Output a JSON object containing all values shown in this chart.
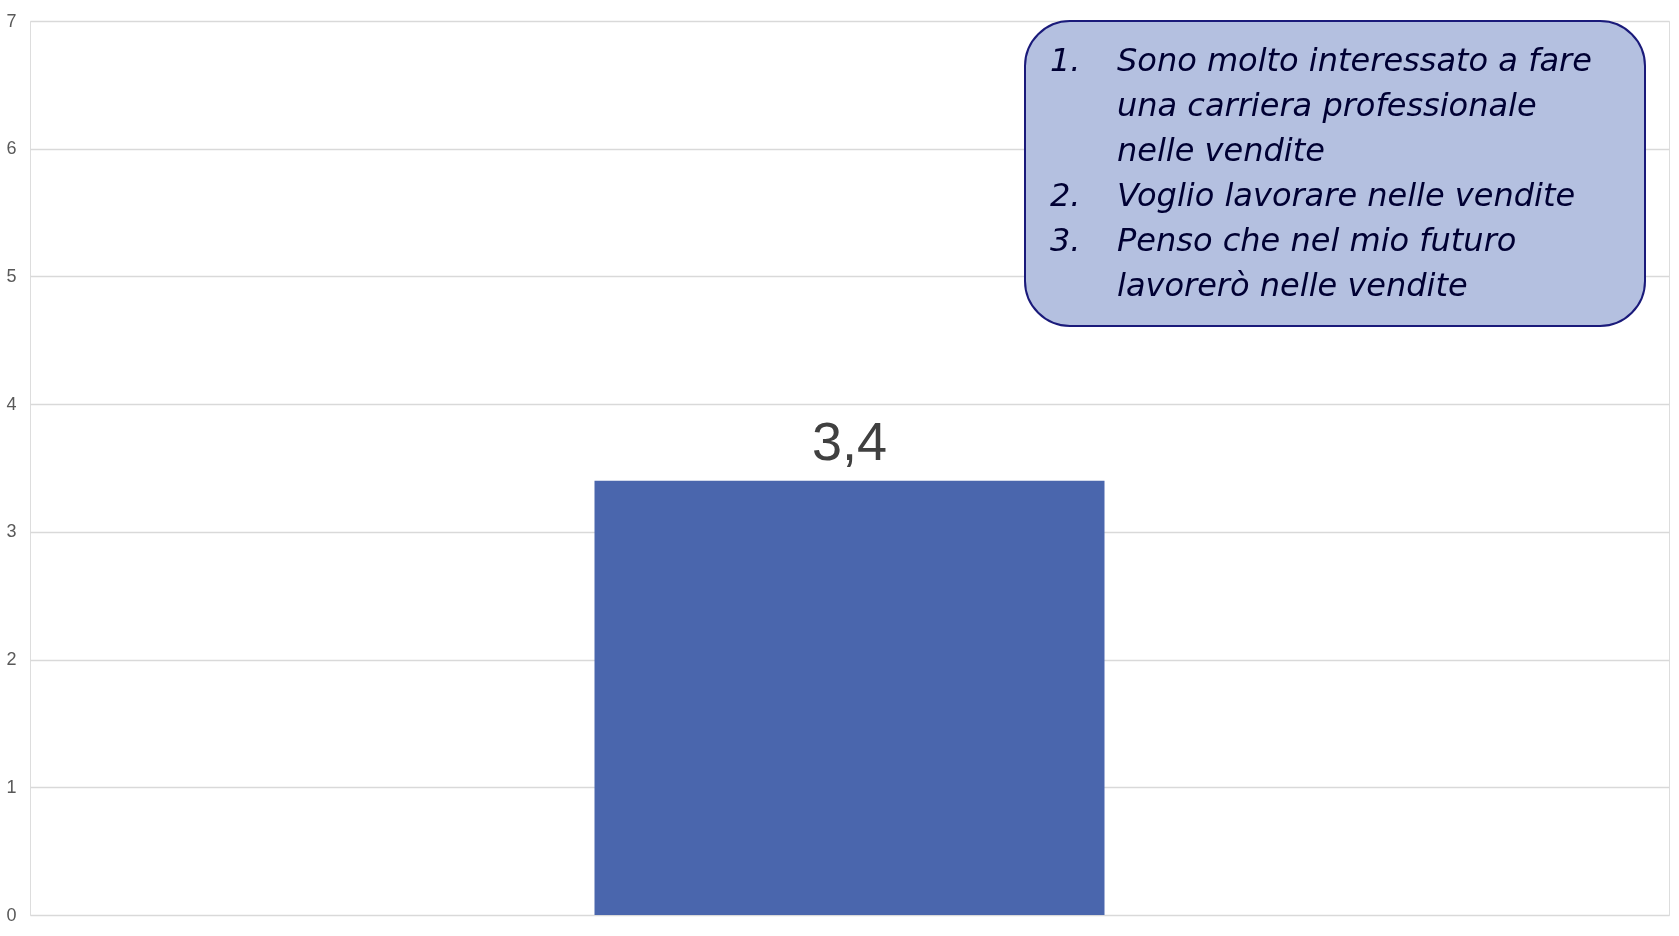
{
  "chart_data": {
    "type": "bar",
    "categories": [
      null
    ],
    "values": [
      3.4
    ],
    "color": "#4a66ad",
    "value_labels": [
      "3,4"
    ],
    "ylim": [
      0,
      7
    ],
    "yticks": [
      0,
      1,
      2,
      3,
      4,
      5,
      6,
      7
    ],
    "grid": "y",
    "tick_labels": "y",
    "annotations": [
      "1. Sono molto interessato a fare una carriera professionale nelle vendite",
      "2. Voglio lavorare nelle vendite",
      "3. Penso che nel mio futuro lavorerò nelle vendite"
    ]
  }
}
